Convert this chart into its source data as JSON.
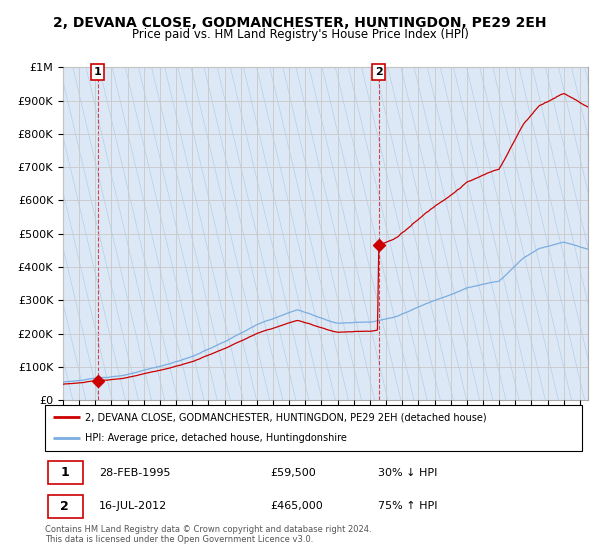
{
  "title": "2, DEVANA CLOSE, GODMANCHESTER, HUNTINGDON, PE29 2EH",
  "subtitle": "Price paid vs. HM Land Registry's House Price Index (HPI)",
  "sale1_year": 1995.15,
  "sale1_price": 59500,
  "sale2_year": 2012.54,
  "sale2_price": 465000,
  "legend_line1": "2, DEVANA CLOSE, GODMANCHESTER, HUNTINGDON, PE29 2EH (detached house)",
  "legend_line2": "HPI: Average price, detached house, Huntingdonshire",
  "footer1": "Contains HM Land Registry data © Crown copyright and database right 2024.",
  "footer2": "This data is licensed under the Open Government Licence v3.0.",
  "date1": "28-FEB-1995",
  "price1": "£59,500",
  "pct1": "30% ↓ HPI",
  "date2": "16-JUL-2012",
  "price2": "£465,000",
  "pct2": "75% ↑ HPI",
  "red_color": "#cc0000",
  "blue_color": "#7aade0",
  "bg_color": "#dce8f5",
  "hatch_line_color": "#b8cfe8",
  "grid_color": "#c8c8c8",
  "ylim": [
    0,
    1000000
  ],
  "xlim_start": 1993.0,
  "xlim_end": 2025.5
}
